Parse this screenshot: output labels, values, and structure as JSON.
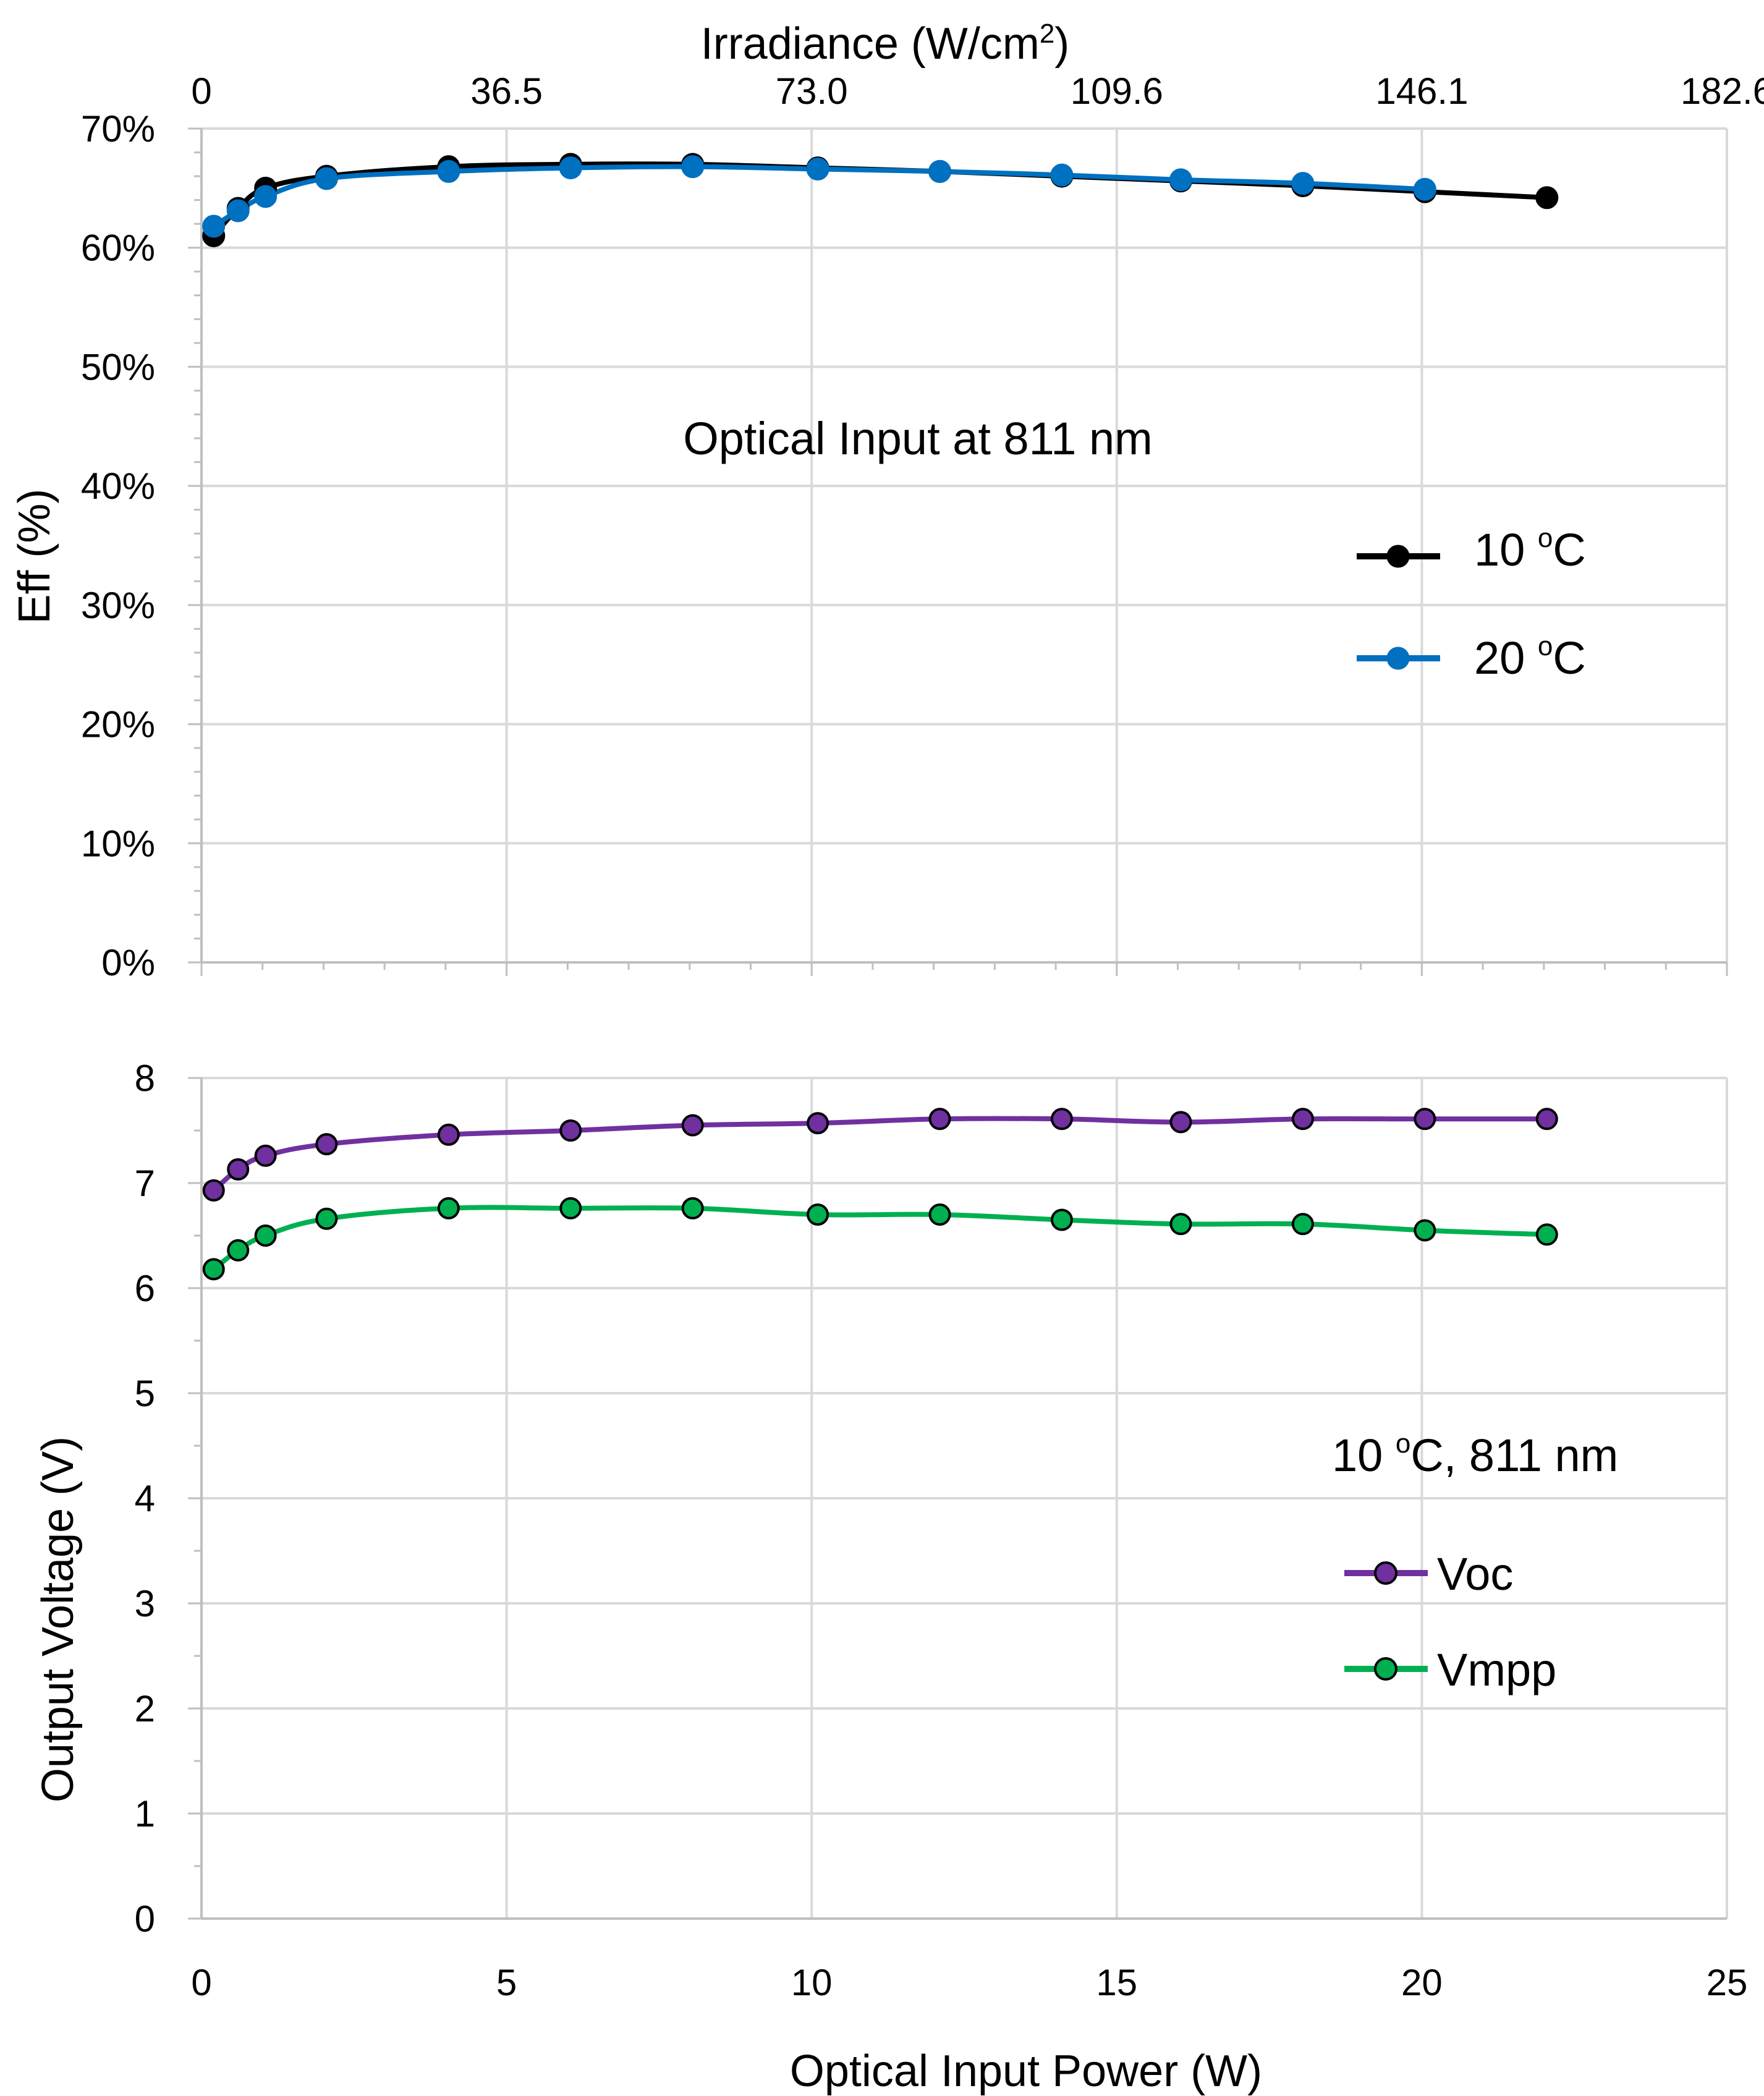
{
  "chart_data": [
    {
      "type": "line",
      "id": "efficiency",
      "x_top_label": "Irradiance (W/cm",
      "x_top_label_sup": "2",
      "x_top_label_end": ")",
      "x_top_ticks": [
        {
          "x": 0,
          "label": "0"
        },
        {
          "x": 5,
          "label": "36.5"
        },
        {
          "x": 10,
          "label": "73.0"
        },
        {
          "x": 15,
          "label": "109.6"
        },
        {
          "x": 20,
          "label": "146.1"
        },
        {
          "x": 25,
          "label": "182.6"
        }
      ],
      "ylabel": "Eff (%)",
      "ylim": [
        0,
        70
      ],
      "y_ticks": [
        {
          "v": 0,
          "label": "0%"
        },
        {
          "v": 10,
          "label": "10%"
        },
        {
          "v": 20,
          "label": "20%"
        },
        {
          "v": 30,
          "label": "30%"
        },
        {
          "v": 40,
          "label": "40%"
        },
        {
          "v": 50,
          "label": "50%"
        },
        {
          "v": 60,
          "label": "60%"
        },
        {
          "v": 70,
          "label": "70%"
        }
      ],
      "xlim": [
        0,
        25
      ],
      "annotation": "Optical Input at 811 nm",
      "legend": [
        {
          "series": "10C",
          "label": "10 ",
          "sup": "o",
          "unit": "C"
        },
        {
          "series": "20C",
          "label": "20 ",
          "sup": "o",
          "unit": "C"
        }
      ],
      "series": [
        {
          "name": "10C",
          "color": "#000000",
          "x": [
            0.2,
            0.6,
            1.05,
            2.05,
            4.05,
            6.05,
            8.05,
            10.1,
            12.1,
            14.1,
            16.05,
            18.05,
            20.05,
            22.05
          ],
          "y": [
            61.0,
            63.3,
            65.0,
            66.0,
            66.8,
            67.0,
            67.0,
            66.7,
            66.4,
            66.0,
            65.6,
            65.2,
            64.7,
            64.2
          ]
        },
        {
          "name": "20C",
          "color": "#0070c0",
          "x": [
            0.2,
            0.6,
            1.05,
            2.05,
            4.05,
            6.05,
            8.05,
            10.1,
            12.1,
            14.1,
            16.05,
            18.05,
            20.05
          ],
          "y": [
            61.8,
            63.1,
            64.3,
            65.8,
            66.4,
            66.7,
            66.8,
            66.6,
            66.4,
            66.1,
            65.7,
            65.4,
            64.9
          ]
        }
      ]
    },
    {
      "type": "line",
      "id": "voltage",
      "xlabel": "Optical Input Power (W)",
      "xlim": [
        0,
        25
      ],
      "x_ticks": [
        {
          "v": 0,
          "label": "0"
        },
        {
          "v": 5,
          "label": "5"
        },
        {
          "v": 10,
          "label": "10"
        },
        {
          "v": 15,
          "label": "15"
        },
        {
          "v": 20,
          "label": "20"
        },
        {
          "v": 25,
          "label": "25"
        }
      ],
      "ylabel": "Output Voltage (V)",
      "ylim": [
        0,
        8
      ],
      "y_ticks": [
        {
          "v": 0,
          "label": "0"
        },
        {
          "v": 1,
          "label": "1"
        },
        {
          "v": 2,
          "label": "2"
        },
        {
          "v": 3,
          "label": "3"
        },
        {
          "v": 4,
          "label": "4"
        },
        {
          "v": 5,
          "label": "5"
        },
        {
          "v": 6,
          "label": "6"
        },
        {
          "v": 7,
          "label": "7"
        },
        {
          "v": 8,
          "label": "8"
        }
      ],
      "annotation": {
        "prefix": "10 ",
        "sup": "o",
        "suffix": "C, 811 nm"
      },
      "legend": [
        {
          "series": "Voc",
          "label": "Voc"
        },
        {
          "series": "Vmpp",
          "label": "Vmpp"
        }
      ],
      "series": [
        {
          "name": "Voc",
          "color": "#7030a0",
          "x": [
            0.2,
            0.6,
            1.05,
            2.05,
            4.05,
            6.05,
            8.05,
            10.1,
            12.1,
            14.1,
            16.05,
            18.05,
            20.05,
            22.05
          ],
          "y": [
            6.93,
            7.13,
            7.26,
            7.37,
            7.46,
            7.5,
            7.55,
            7.57,
            7.61,
            7.61,
            7.58,
            7.61,
            7.61,
            7.61
          ]
        },
        {
          "name": "Vmpp",
          "color": "#00b050",
          "x": [
            0.2,
            0.6,
            1.05,
            2.05,
            4.05,
            6.05,
            8.05,
            10.1,
            12.1,
            14.1,
            16.05,
            18.05,
            20.05,
            22.05
          ],
          "y": [
            6.18,
            6.36,
            6.5,
            6.66,
            6.76,
            6.76,
            6.76,
            6.7,
            6.7,
            6.65,
            6.61,
            6.61,
            6.55,
            6.51
          ]
        }
      ]
    }
  ]
}
